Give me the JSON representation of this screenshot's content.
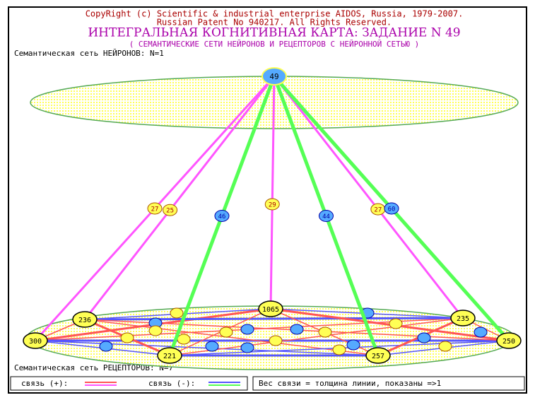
{
  "header": {
    "copyright": "CopyRight (c) Scientific & industrial enterprise AIDOS, Russia, 1979-2007.",
    "patent": "Russian Patent No 940217. All Rights Reserved.",
    "title": "ИНТЕГРАЛЬНАЯ КОГНИТИВНАЯ КАРТА: ЗАДАНИЕ N 49",
    "subtitle": "( СЕМАНТИЧЕСКИЕ СЕТИ НЕЙРОНОВ И РЕЦЕПТОРОВ С НЕЙРОННОЙ СЕТЬЮ )"
  },
  "neuron_net": {
    "label": "Семантическая сеть НЕЙРОНОВ: N=1",
    "node": "49"
  },
  "receptor_net": {
    "label": "Семантическая сеть РЕЦЕПТОРОВ: N=7",
    "nodes": [
      "300",
      "236",
      "221",
      "1065",
      "257",
      "235",
      "250"
    ]
  },
  "links": [
    {
      "to": 0,
      "color": "#ff55ff",
      "weight": "27"
    },
    {
      "to": 1,
      "color": "#ff55ff",
      "weight": "25"
    },
    {
      "to": 2,
      "color": "#55ff55",
      "weight": "46"
    },
    {
      "to": 3,
      "color": "#ff55ff",
      "weight": "29"
    },
    {
      "to": 4,
      "color": "#55ff55",
      "weight": "44"
    },
    {
      "to": 5,
      "color": "#ff55ff",
      "weight": "27"
    },
    {
      "to": 6,
      "color": "#55ff55",
      "weight": "60"
    }
  ],
  "legend": {
    "positive": "связь (+):",
    "negative": "связь (-):",
    "note": "Вес связи = толщина линии, показаны =>1"
  }
}
